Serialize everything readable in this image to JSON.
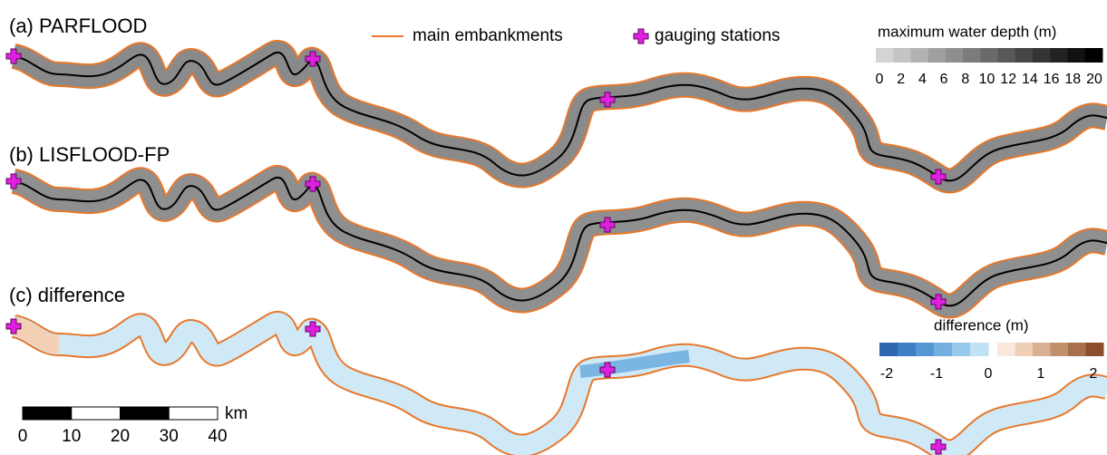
{
  "panels": [
    {
      "label": "(a) PARFLOOD"
    },
    {
      "label": "(b) LISFLOOD-FP"
    },
    {
      "label": "(c) difference"
    }
  ],
  "legend": {
    "embankments": "main embankments",
    "gauging": "gauging stations"
  },
  "depth_scale": {
    "title": "maximum water depth (m)",
    "ticks": [
      0,
      2,
      4,
      6,
      8,
      10,
      12,
      14,
      16,
      18,
      20
    ],
    "colors": [
      "#d4d4d4",
      "#c4c4c4",
      "#b2b2b2",
      "#a0a0a0",
      "#8e8e8e",
      "#7c7c7c",
      "#6a6a6a",
      "#585858",
      "#464646",
      "#343434",
      "#222222",
      "#111111",
      "#000000"
    ]
  },
  "diff_scale": {
    "title": "difference (m)",
    "ticks": [
      -2,
      -1,
      0,
      1,
      2
    ],
    "neg_colors": [
      "#2f66b0",
      "#3d7ec4",
      "#5596d4",
      "#74afe0",
      "#98c9ec",
      "#c0e2f4"
    ],
    "pos_colors": [
      "#fbe8dc",
      "#eed0b8",
      "#d8b092",
      "#c0906c",
      "#a8704c",
      "#8c4f2e"
    ]
  },
  "scale_bar": {
    "ticks": [
      0,
      10,
      20,
      30,
      40
    ],
    "unit": "km"
  }
}
